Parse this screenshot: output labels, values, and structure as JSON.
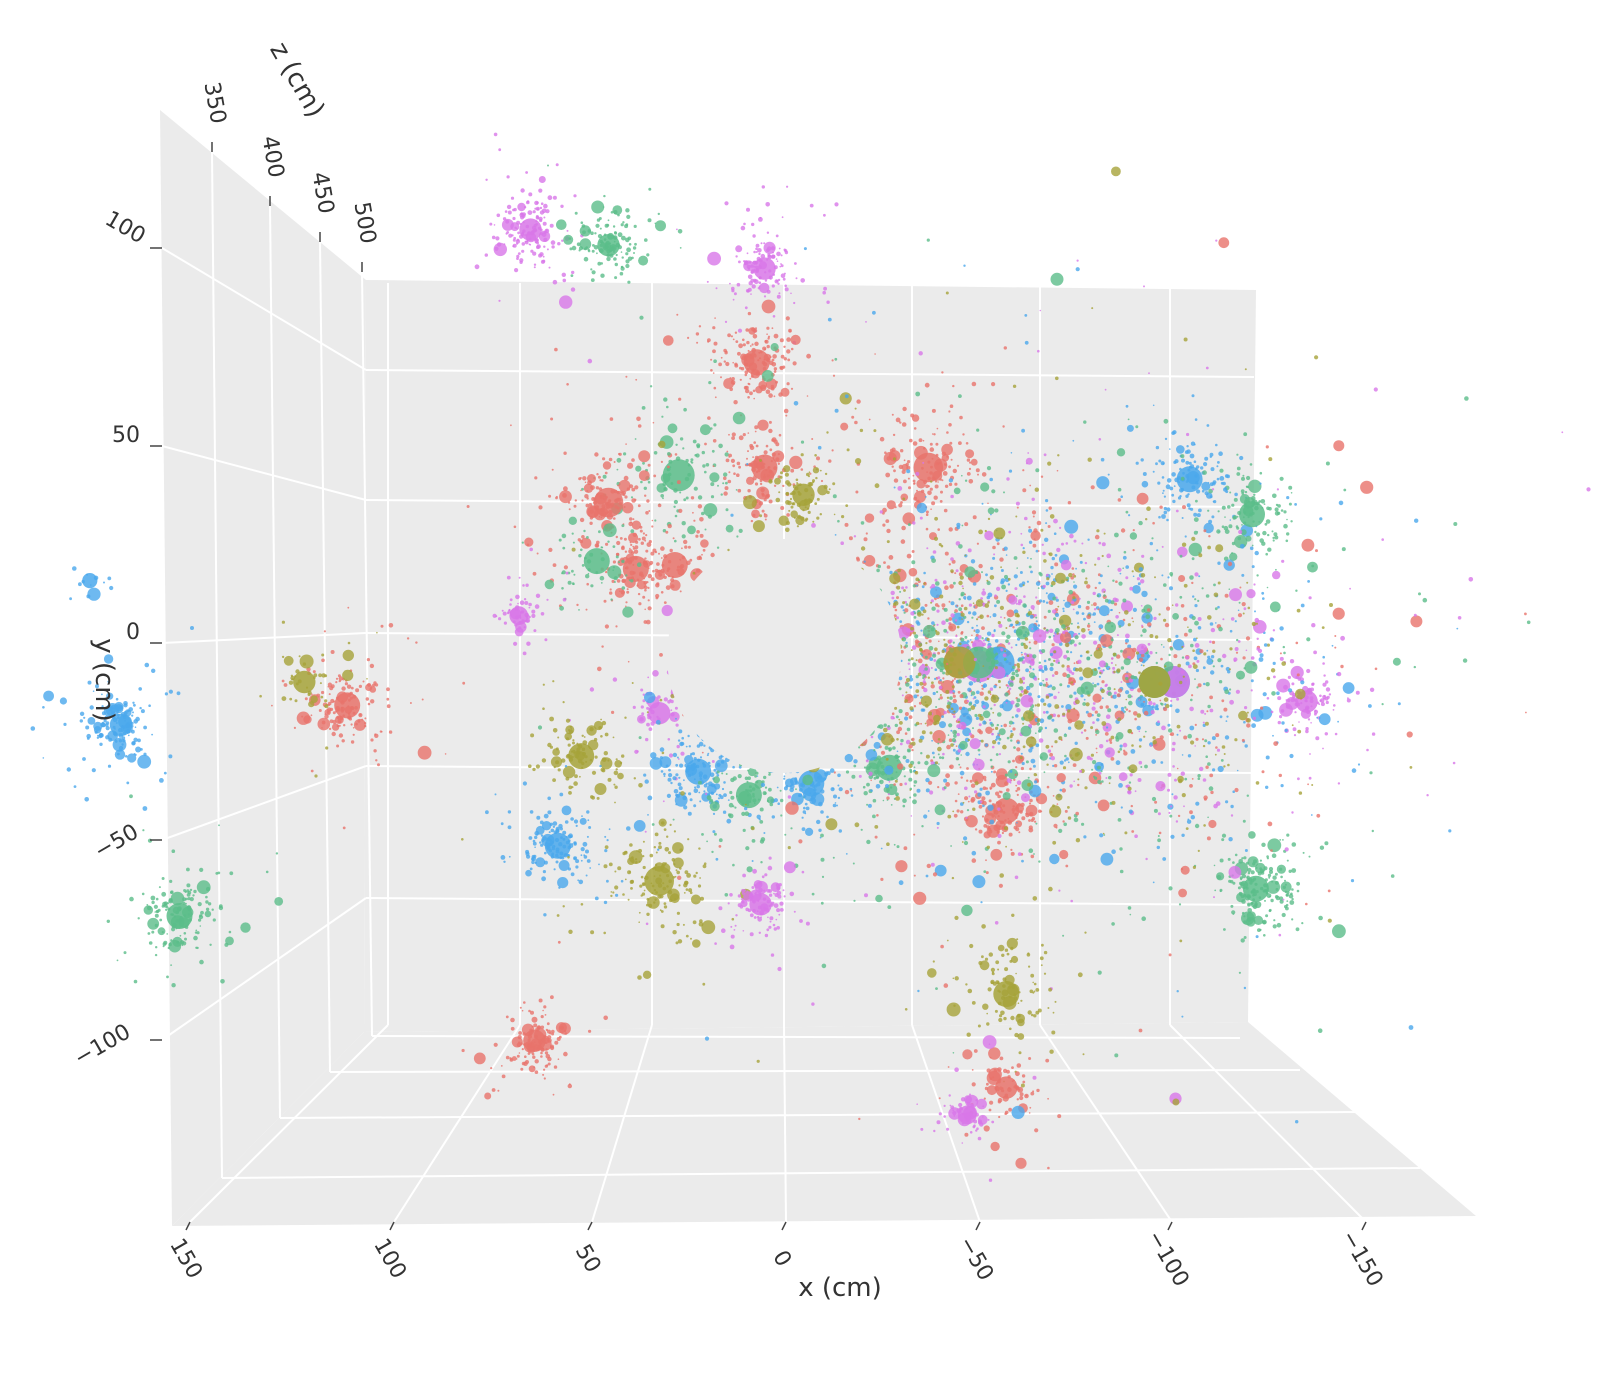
{
  "chart_data": {
    "type": "scatter",
    "subtype": "3d-scatter",
    "title": "",
    "xlabel": "x (cm)",
    "ylabel": "y (cm)",
    "zlabel": "z (cm)",
    "x_ticks": [
      "150",
      "100",
      "50",
      "0",
      "−50",
      "−100",
      "−150"
    ],
    "y_ticks": [
      "100",
      "50",
      "0",
      "−50",
      "−100"
    ],
    "z_ticks": [
      "350",
      "400",
      "450",
      "500"
    ],
    "xlim": [
      150,
      -150
    ],
    "ylim": [
      -130,
      130
    ],
    "zlim": [
      320,
      540
    ],
    "grid": true,
    "legend": "none",
    "background": "#ebebeb",
    "hole": {
      "center_x": 0,
      "center_y": 0,
      "radius": 30
    },
    "series_colors": [
      "#e8736b",
      "#5bbd89",
      "#4aa8ec",
      "#a6a33a",
      "#d877e8"
    ],
    "clusters": [
      {
        "x": 65,
        "y": 106,
        "color": 4,
        "spread": 4,
        "n": 160
      },
      {
        "x": 45,
        "y": 102,
        "color": 1,
        "spread": 4,
        "n": 120
      },
      {
        "x": 5,
        "y": 96,
        "color": 4,
        "spread": 4,
        "n": 140
      },
      {
        "x": 7,
        "y": 72,
        "color": 0,
        "spread": 5,
        "n": 170
      },
      {
        "x": 27,
        "y": 43,
        "color": 1,
        "spread": 7,
        "n": 110
      },
      {
        "x": 5,
        "y": 45,
        "color": 0,
        "spread": 5,
        "n": 120
      },
      {
        "x": -37,
        "y": 45,
        "color": 0,
        "spread": 6,
        "n": 150
      },
      {
        "x": -5,
        "y": 38,
        "color": 3,
        "spread": 4,
        "n": 90
      },
      {
        "x": 45,
        "y": 36,
        "color": 0,
        "spread": 6,
        "n": 170
      },
      {
        "x": 38,
        "y": 19,
        "color": 0,
        "spread": 5,
        "n": 110
      },
      {
        "x": 28,
        "y": 20,
        "color": 0,
        "spread": 5,
        "n": 80
      },
      {
        "x": 48,
        "y": 21,
        "color": 1,
        "spread": 5,
        "n": 60
      },
      {
        "x": 68,
        "y": 7,
        "color": 4,
        "spread": 3,
        "n": 60
      },
      {
        "x": 112,
        "y": -16,
        "color": 0,
        "spread": 5,
        "n": 150
      },
      {
        "x": 123,
        "y": -10,
        "color": 3,
        "spread": 4,
        "n": 40
      },
      {
        "x": 170,
        "y": -21,
        "color": 2,
        "spread": 4,
        "n": 140
      },
      {
        "x": 178,
        "y": 16,
        "color": 2,
        "spread": 2,
        "n": 12
      },
      {
        "x": 32,
        "y": -18,
        "color": 4,
        "spread": 4,
        "n": 60
      },
      {
        "x": 52,
        "y": -29,
        "color": 3,
        "spread": 5,
        "n": 110
      },
      {
        "x": 22,
        "y": -33,
        "color": 2,
        "spread": 5,
        "n": 150
      },
      {
        "x": 9,
        "y": -39,
        "color": 1,
        "spread": 5,
        "n": 90
      },
      {
        "x": -7,
        "y": -36,
        "color": 2,
        "spread": 5,
        "n": 130
      },
      {
        "x": -27,
        "y": -32,
        "color": 1,
        "spread": 5,
        "n": 100
      },
      {
        "x": 58,
        "y": -52,
        "color": 2,
        "spread": 5,
        "n": 150
      },
      {
        "x": 32,
        "y": -61,
        "color": 3,
        "spread": 6,
        "n": 160
      },
      {
        "x": 6,
        "y": -67,
        "color": 4,
        "spread": 4,
        "n": 110
      },
      {
        "x": 155,
        "y": -70,
        "color": 1,
        "spread": 5,
        "n": 150
      },
      {
        "x": 64,
        "y": -102,
        "color": 0,
        "spread": 4,
        "n": 130
      },
      {
        "x": -57,
        "y": -90,
        "color": 3,
        "spread": 5,
        "n": 110
      },
      {
        "x": -57,
        "y": -114,
        "color": 0,
        "spread": 4,
        "n": 80
      },
      {
        "x": -47,
        "y": -121,
        "color": 4,
        "spread": 3,
        "n": 60
      },
      {
        "x": -57,
        "y": -43,
        "color": 0,
        "spread": 5,
        "n": 150
      },
      {
        "x": -104,
        "y": 42,
        "color": 2,
        "spread": 5,
        "n": 130
      },
      {
        "x": -120,
        "y": 33,
        "color": 1,
        "spread": 5,
        "n": 120
      },
      {
        "x": -121,
        "y": -63,
        "color": 1,
        "spread": 5,
        "n": 180
      },
      {
        "x": -134,
        "y": -15,
        "color": 4,
        "spread": 4,
        "n": 90
      },
      {
        "x": -45,
        "y": -5,
        "color": 0,
        "spread": 18,
        "n": 420
      },
      {
        "x": -55,
        "y": -5,
        "color": 2,
        "spread": 18,
        "n": 460
      },
      {
        "x": -50,
        "y": -6,
        "color": 4,
        "spread": 18,
        "n": 340
      },
      {
        "x": -50,
        "y": -5,
        "color": 1,
        "spread": 18,
        "n": 360
      },
      {
        "x": -45,
        "y": -5,
        "color": 3,
        "spread": 18,
        "n": 300
      },
      {
        "x": -100,
        "y": -10,
        "color": 2,
        "spread": 20,
        "n": 230
      },
      {
        "x": -95,
        "y": -10,
        "color": 0,
        "spread": 20,
        "n": 190
      },
      {
        "x": -100,
        "y": -10,
        "color": 4,
        "spread": 20,
        "n": 190
      },
      {
        "x": -95,
        "y": -10,
        "color": 1,
        "spread": 20,
        "n": 170
      },
      {
        "x": -95,
        "y": -10,
        "color": 3,
        "spread": 20,
        "n": 150
      }
    ]
  }
}
